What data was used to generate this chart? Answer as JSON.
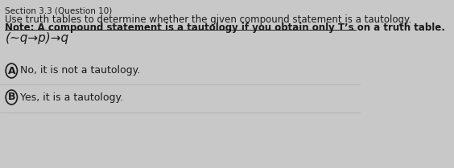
{
  "bg_color": "#c8c8c8",
  "section_label": "Section 3.3 (Question 10)",
  "line1": "Use truth tables to determine whether the given compound statement is a tautology.",
  "line2_full": "Note: A compound statement is a tautology if you obtain only T’s on a truth table.",
  "formula": "(∼q→p)→q",
  "option_A_letter": "A",
  "option_A_text": "No, it is not a tautology.",
  "option_B_letter": "B",
  "option_B_text": "Yes, it is a tautology.",
  "text_color": "#1a1a1a",
  "circle_color": "#1a1a1a",
  "font_size_section": 7.5,
  "font_size_body": 8.5,
  "font_size_formula": 11,
  "font_size_option": 9,
  "separator_color": "#aaaaaa"
}
